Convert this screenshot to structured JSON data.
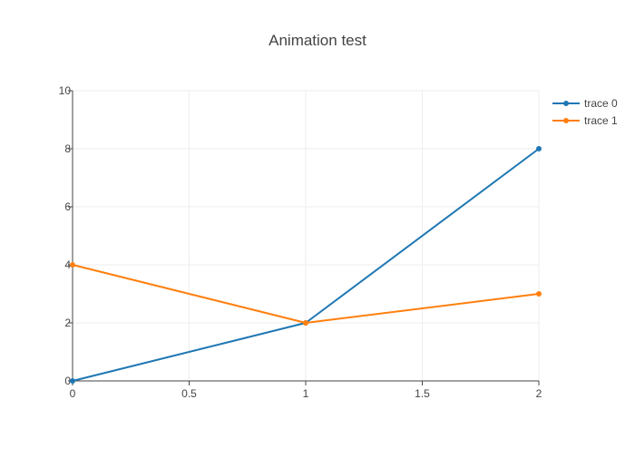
{
  "chart_data": {
    "type": "line",
    "title": "Animation test",
    "xlabel": "",
    "ylabel": "",
    "xlim": [
      0,
      2
    ],
    "ylim": [
      0,
      10
    ],
    "x_ticks": [
      0,
      0.5,
      1,
      1.5,
      2
    ],
    "y_ticks": [
      0,
      2,
      4,
      6,
      8,
      10
    ],
    "grid": true,
    "legend_position": "top-right",
    "series": [
      {
        "name": "trace 0",
        "color": "#1f77b4",
        "x": [
          0,
          1,
          2
        ],
        "y": [
          0,
          2,
          8
        ]
      },
      {
        "name": "trace 1",
        "color": "#ff7f0e",
        "x": [
          0,
          1,
          2
        ],
        "y": [
          4,
          2,
          3
        ]
      }
    ]
  }
}
